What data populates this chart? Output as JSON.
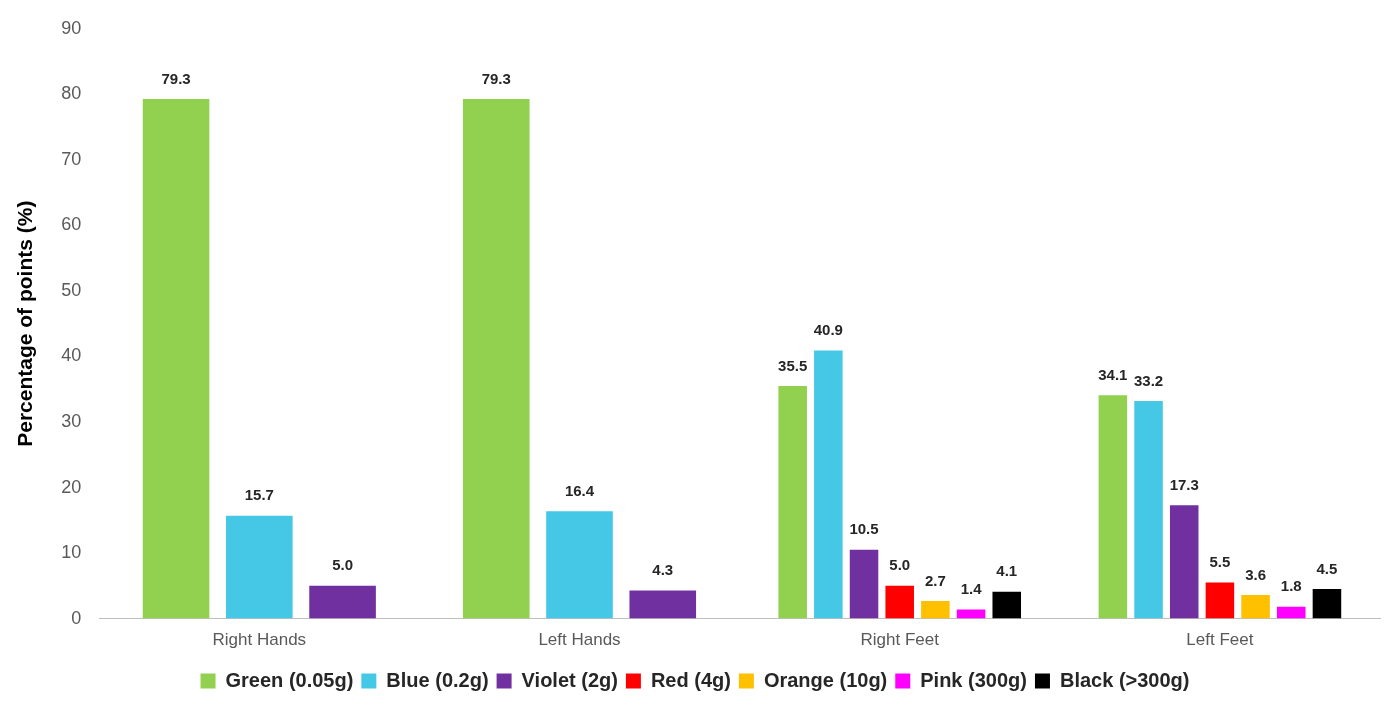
{
  "chart_data": {
    "type": "bar",
    "ylabel": "Percentage of points (%)",
    "categories": [
      "Right Hands",
      "Left Hands",
      "Right Feet",
      "Left Feet"
    ],
    "series": [
      {
        "name": "Green (0.05g)",
        "color": "#92d050",
        "values": [
          79.3,
          79.3,
          35.5,
          34.1
        ],
        "value_labels": [
          "79.3",
          "79.3",
          "35.5",
          "34.1"
        ]
      },
      {
        "name": "Blue (0.2g)",
        "color": "#45c8e6",
        "values": [
          15.7,
          16.4,
          40.9,
          33.2
        ],
        "value_labels": [
          "15.7",
          "16.4",
          "40.9",
          "33.2"
        ]
      },
      {
        "name": "Violet (2g)",
        "color": "#7030a0",
        "values": [
          5.0,
          4.3,
          10.5,
          17.3
        ],
        "value_labels": [
          "5.0",
          "4.3",
          "10.5",
          "17.3"
        ]
      },
      {
        "name": "Red (4g)",
        "color": "#ff0000",
        "values": [
          null,
          null,
          5.0,
          5.5
        ],
        "value_labels": [
          null,
          null,
          "5.0",
          "5.5"
        ]
      },
      {
        "name": "Orange (10g)",
        "color": "#ffc000",
        "values": [
          null,
          null,
          2.7,
          3.6
        ],
        "value_labels": [
          null,
          null,
          "2.7",
          "3.6"
        ]
      },
      {
        "name": "Pink (300g)",
        "color": "#ff00ff",
        "values": [
          null,
          null,
          1.4,
          1.8
        ],
        "value_labels": [
          null,
          null,
          "1.4",
          "1.8"
        ]
      },
      {
        "name": "Black (>300g)",
        "color": "#000000",
        "values": [
          null,
          null,
          4.1,
          4.5
        ],
        "value_labels": [
          null,
          null,
          "4.1",
          "4.5"
        ]
      }
    ],
    "ylim": [
      0,
      90
    ],
    "yticks": [
      0,
      10,
      20,
      30,
      40,
      50,
      60,
      70,
      80,
      90
    ],
    "grid": false,
    "legend": "bottom"
  }
}
